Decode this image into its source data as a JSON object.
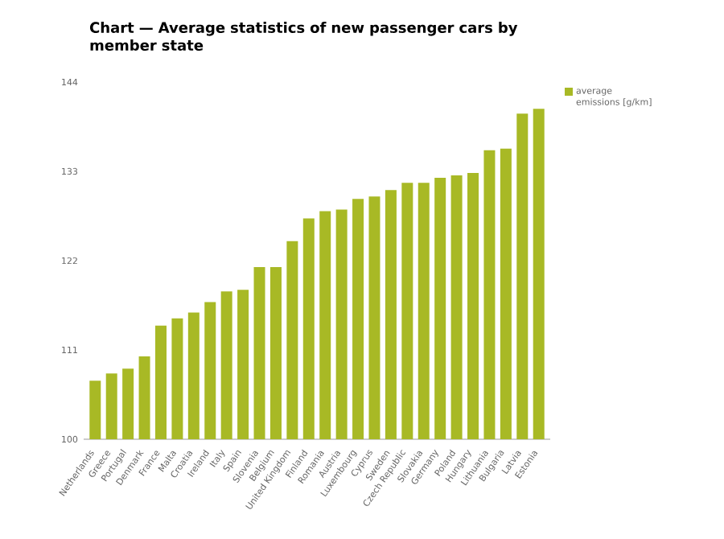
{
  "chart_data": {
    "type": "bar",
    "title": "Chart — Average statistics of new passenger cars by member state",
    "categories": [
      "Netherlands",
      "Greece",
      "Portugal",
      "Denmark",
      "France",
      "Malta",
      "Croatia",
      "Ireland",
      "Italy",
      "Spain",
      "Slovenia",
      "Belgium",
      "United Kingdom",
      "Finland",
      "Romania",
      "Austria",
      "Luxembourg",
      "Cyprus",
      "Sweden",
      "Czech Republic",
      "Slovakia",
      "Germany",
      "Poland",
      "Hungary",
      "Lithuania",
      "Bulgaria",
      "Latvia",
      "Estonia"
    ],
    "series": [
      {
        "name": "average emissions [g/km]",
        "color": "#a8b925",
        "values": [
          107.2,
          108.1,
          108.7,
          110.2,
          114.0,
          114.9,
          115.6,
          116.9,
          118.2,
          118.4,
          121.2,
          121.2,
          124.4,
          127.2,
          128.1,
          128.3,
          129.6,
          129.9,
          130.7,
          131.6,
          131.6,
          132.2,
          132.5,
          132.8,
          135.6,
          135.8,
          140.1,
          140.7
        ]
      }
    ],
    "ylim": [
      100,
      144
    ],
    "yticks": [
      100,
      111,
      122,
      133,
      144
    ],
    "grid": false,
    "legend": "top right"
  }
}
